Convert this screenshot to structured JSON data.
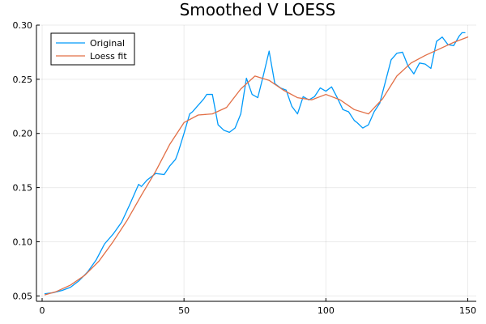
{
  "chart_data": {
    "type": "line",
    "title": "Smoothed V LOESS",
    "xlabel": "",
    "ylabel": "",
    "xlim": [
      -2,
      153
    ],
    "ylim": [
      0.045,
      0.3
    ],
    "xticks": [
      0,
      50,
      100,
      150
    ],
    "yticks": [
      0.05,
      0.1,
      0.15,
      0.2,
      0.25,
      0.3
    ],
    "ytick_labels": [
      "0.05",
      "0.10",
      "0.15",
      "0.20",
      "0.25",
      "0.30"
    ],
    "grid": true,
    "legend": {
      "position": "top-left"
    },
    "series": [
      {
        "name": "Original",
        "color": "#009AFA",
        "x": [
          1,
          4,
          7,
          10,
          13,
          16,
          19,
          22,
          25,
          28,
          31,
          34,
          35,
          37,
          40,
          43,
          45,
          47,
          48,
          50,
          52,
          53,
          55,
          57,
          58,
          60,
          62,
          64,
          66,
          68,
          70,
          72,
          74,
          76,
          78,
          80,
          82,
          84,
          86,
          88,
          90,
          92,
          94,
          96,
          98,
          100,
          102,
          104,
          106,
          108,
          110,
          111,
          113,
          115,
          117,
          119,
          121,
          123,
          125,
          127,
          129,
          131,
          133,
          135,
          137,
          139,
          141,
          143,
          145,
          147,
          148,
          149
        ],
        "y": [
          0.052,
          0.053,
          0.055,
          0.058,
          0.064,
          0.072,
          0.083,
          0.098,
          0.107,
          0.118,
          0.135,
          0.153,
          0.151,
          0.157,
          0.163,
          0.162,
          0.17,
          0.176,
          0.183,
          0.2,
          0.218,
          0.22,
          0.226,
          0.232,
          0.236,
          0.236,
          0.208,
          0.203,
          0.201,
          0.205,
          0.218,
          0.251,
          0.236,
          0.233,
          0.254,
          0.276,
          0.246,
          0.242,
          0.24,
          0.225,
          0.218,
          0.234,
          0.231,
          0.234,
          0.242,
          0.239,
          0.243,
          0.233,
          0.222,
          0.22,
          0.212,
          0.21,
          0.205,
          0.208,
          0.22,
          0.228,
          0.248,
          0.268,
          0.274,
          0.275,
          0.262,
          0.255,
          0.265,
          0.264,
          0.26,
          0.285,
          0.289,
          0.282,
          0.281,
          0.29,
          0.293,
          0.293
        ]
      },
      {
        "name": "Loess fit",
        "color": "#E26F46",
        "x": [
          1,
          5,
          10,
          15,
          20,
          25,
          30,
          35,
          40,
          45,
          50,
          55,
          60,
          65,
          70,
          75,
          80,
          85,
          90,
          95,
          100,
          105,
          110,
          115,
          120,
          125,
          130,
          135,
          140,
          145,
          150
        ],
        "y": [
          0.051,
          0.054,
          0.06,
          0.069,
          0.082,
          0.1,
          0.12,
          0.143,
          0.165,
          0.19,
          0.21,
          0.217,
          0.218,
          0.224,
          0.241,
          0.253,
          0.249,
          0.24,
          0.233,
          0.231,
          0.236,
          0.231,
          0.222,
          0.218,
          0.232,
          0.253,
          0.265,
          0.272,
          0.278,
          0.284,
          0.289
        ]
      }
    ]
  }
}
